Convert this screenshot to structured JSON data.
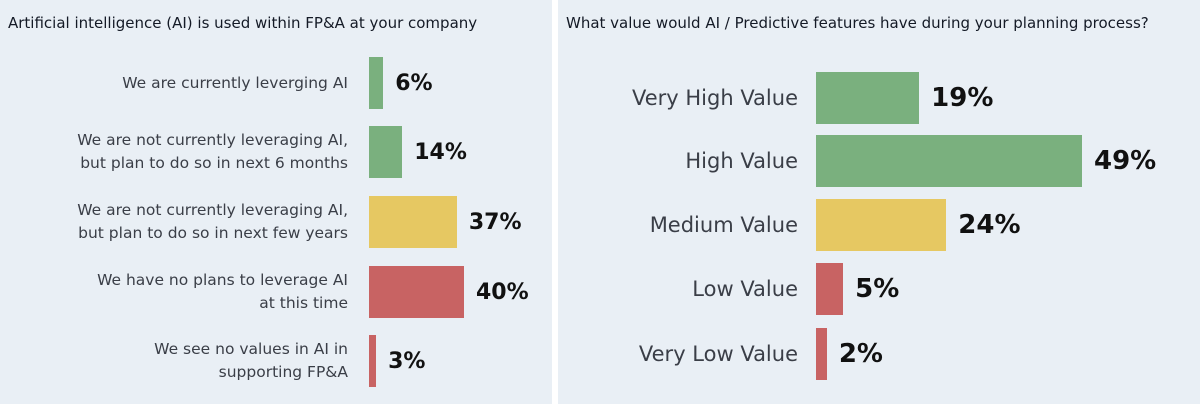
{
  "chart_data": [
    {
      "type": "bar",
      "orientation": "horizontal",
      "title": "Artificial intelligence (AI) is used within FP&A at your company",
      "categories": [
        "We are currently leverging AI",
        "We are not currently leveraging AI, but plan to do so in next 6 months",
        "We are not currently leveraging AI, but plan to do so in next few years",
        "We have no plans to leverage AI at this time",
        "We see no values in AI in supporting FP&A"
      ],
      "category_lines": [
        [
          "We are currently leverging AI"
        ],
        [
          "We are not currently leveraging AI,",
          "but plan to do so in next 6 months"
        ],
        [
          "We are not currently leveraging AI,",
          "but plan to do so in next few years"
        ],
        [
          "We have no plans to leverage AI",
          "at this time"
        ],
        [
          "We see no values in AI in",
          "supporting FP&A"
        ]
      ],
      "values": [
        6,
        14,
        37,
        40,
        3
      ],
      "value_labels": [
        "6%",
        "14%",
        "37%",
        "40%",
        "3%"
      ],
      "colors": [
        "#7ab07e",
        "#7ab07e",
        "#e6c862",
        "#c86363",
        "#c86363"
      ],
      "xlim": [
        0,
        40
      ]
    },
    {
      "type": "bar",
      "orientation": "horizontal",
      "title": "What value would AI / Predictive features have during your planning process?",
      "categories": [
        "Very High Value",
        "High Value",
        "Medium Value",
        "Low Value",
        "Very Low Value"
      ],
      "category_lines": [
        [
          "Very High Value"
        ],
        [
          "High Value"
        ],
        [
          "Medium Value"
        ],
        [
          "Low Value"
        ],
        [
          "Very Low Value"
        ]
      ],
      "values": [
        19,
        49,
        24,
        5,
        2
      ],
      "value_labels": [
        "19%",
        "49%",
        "24%",
        "5%",
        "2%"
      ],
      "colors": [
        "#7ab07e",
        "#7ab07e",
        "#e6c862",
        "#c86363",
        "#c86363"
      ],
      "xlim": [
        0,
        49
      ]
    }
  ]
}
